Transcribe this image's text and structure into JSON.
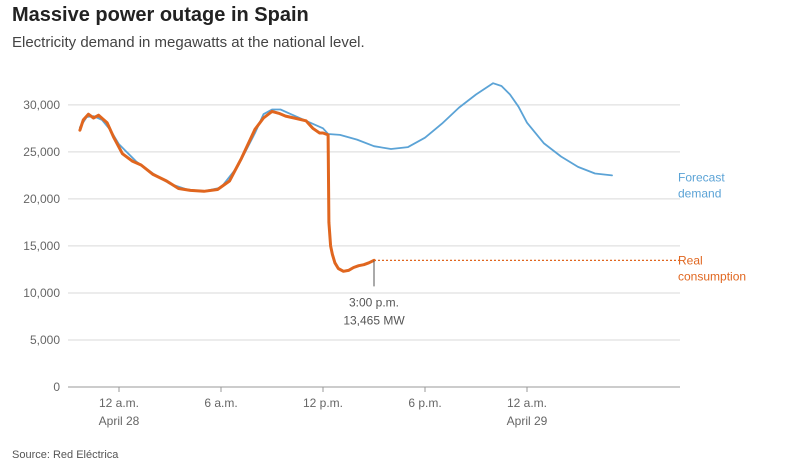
{
  "title": "Massive power outage in Spain",
  "subtitle": "Electricity demand in megawatts at the national level.",
  "source": "Source: Red Eléctrica",
  "colors": {
    "forecast": "#5ba3d6",
    "real": "#e0661f",
    "grid": "#d9d9d9",
    "axis": "#999999"
  },
  "chart_data": {
    "type": "line",
    "xunit": "hours from 12 a.m. April 28",
    "xlim": [
      -3,
      33
    ],
    "ylim": [
      0,
      32000
    ],
    "yticks": [
      0,
      5000,
      10000,
      15000,
      20000,
      25000,
      30000
    ],
    "ytick_labels": [
      "0",
      "5,000",
      "10,000",
      "15,000",
      "20,000",
      "25,000",
      "30,000"
    ],
    "xticks": [
      {
        "x": 0,
        "line1": "12 a.m.",
        "line2": "April 28"
      },
      {
        "x": 6,
        "line1": "6 a.m.",
        "line2": ""
      },
      {
        "x": 12,
        "line1": "12 p.m.",
        "line2": ""
      },
      {
        "x": 18,
        "line1": "6 p.m.",
        "line2": ""
      },
      {
        "x": 24,
        "line1": "12 a.m.",
        "line2": "April 29"
      }
    ],
    "series": [
      {
        "name": "Forecast demand",
        "label_line1": "Forecast",
        "label_line2": "demand",
        "x": [
          -2.3,
          -1.9,
          -1.5,
          -1.0,
          -0.5,
          0,
          1,
          2,
          3,
          4,
          5,
          6,
          7,
          8,
          8.5,
          9,
          9.5,
          10,
          11,
          12,
          12.3,
          13,
          14,
          15,
          16,
          17,
          18,
          19,
          20,
          21,
          22,
          22.5,
          23,
          23.5,
          24,
          25,
          26,
          27,
          28,
          29
        ],
        "values": [
          27600,
          28700,
          28800,
          28400,
          27300,
          25800,
          24000,
          22700,
          21600,
          21000,
          20800,
          21200,
          23500,
          27000,
          29000,
          29500,
          29500,
          29100,
          28300,
          27500,
          26900,
          26800,
          26300,
          25600,
          25300,
          25500,
          26500,
          28000,
          29700,
          31100,
          32300,
          32000,
          31100,
          29800,
          28100,
          25900,
          24500,
          23400,
          22700,
          22500
        ]
      },
      {
        "name": "Real consumption",
        "label_line1": "Real",
        "label_line2": "consumption",
        "x": [
          -2.3,
          -2.1,
          -1.8,
          -1.5,
          -1.2,
          -0.7,
          -0.3,
          0.2,
          0.8,
          1.3,
          2,
          2.8,
          3.5,
          4.2,
          5,
          5.8,
          6.5,
          7.2,
          8,
          8.5,
          9,
          9.4,
          9.8,
          10.3,
          11,
          11.4,
          11.8,
          12,
          12.3,
          12.35,
          12.45,
          12.55,
          12.7,
          12.9,
          13.2,
          13.5,
          13.8,
          14.1,
          14.4,
          14.7,
          15
        ],
        "values": [
          27300,
          28400,
          29000,
          28600,
          28900,
          28100,
          26500,
          24800,
          24000,
          23600,
          22600,
          21900,
          21100,
          20900,
          20800,
          21000,
          21900,
          24300,
          27400,
          28600,
          29300,
          29100,
          28800,
          28600,
          28300,
          27500,
          27000,
          27000,
          26800,
          17500,
          15000,
          14100,
          13200,
          12600,
          12300,
          12400,
          12700,
          12900,
          13000,
          13200,
          13465
        ]
      }
    ],
    "annotation": {
      "x": 15,
      "value": 13465,
      "line1": "3:00 p.m.",
      "line2": "13,465 MW"
    }
  }
}
